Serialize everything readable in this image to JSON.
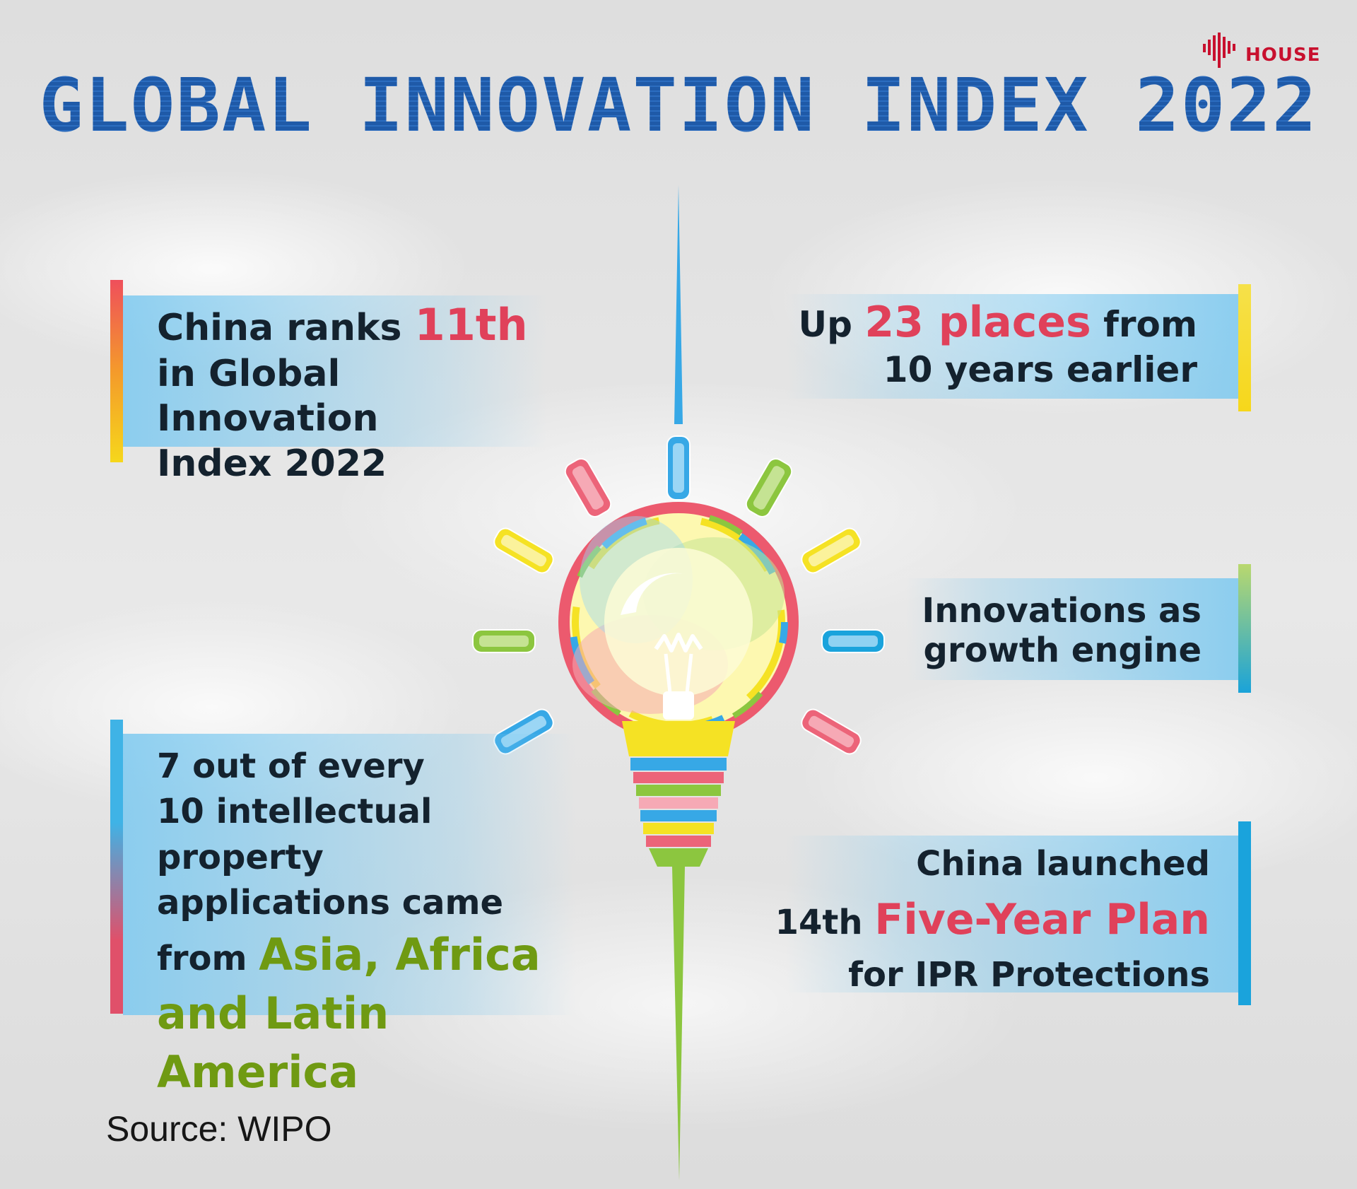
{
  "brand": {
    "logo_text": "HOUSE",
    "color": "#c8102e"
  },
  "title": "GLOBAL INNOVATION INDEX 2022",
  "colors": {
    "title": "#1f5aa8",
    "highlight_red": "#e0415a",
    "highlight_green": "#6f9a12",
    "panel": "#7cc9f0"
  },
  "cards": {
    "rank": {
      "prefix": "China ranks ",
      "highlight": "11th",
      "line2": "in Global Innovation",
      "line3": "Index 2022"
    },
    "places": {
      "prefix": "Up ",
      "highlight": "23 places",
      "suffix": " from",
      "line2": "10 years earlier"
    },
    "engine": {
      "line1": "Innovations as",
      "line2": "growth engine"
    },
    "ip": {
      "line1": "7 out of every",
      "line2": "10 intellectual property",
      "line3": "applications came",
      "prefix4": "from ",
      "highlight4": "Asia, Africa",
      "highlight5": "and Latin America"
    },
    "plan": {
      "line1": "China launched",
      "prefix2": "14th ",
      "highlight2": "Five-Year Plan",
      "line3": "for IPR Protections"
    }
  },
  "illustration": {
    "icon": "lightbulb-icon"
  },
  "source": "Source: WIPO"
}
